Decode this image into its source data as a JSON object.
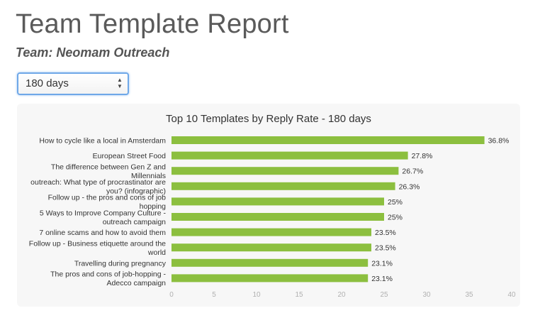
{
  "header": {
    "title": "Team Template Report",
    "team": "Team: Neomam Outreach"
  },
  "range_select": {
    "value": "180 days"
  },
  "colors": {
    "bar": "#8cbf3f",
    "panel": "#f7f7f7",
    "focus_ring": "#6fa8e8"
  },
  "chart_data": {
    "type": "bar",
    "orientation": "horizontal",
    "title": "Top 10 Templates by Reply Rate - 180 days",
    "categories": [
      [
        "How to cycle like a local in Amsterdam"
      ],
      [
        "European Street Food"
      ],
      [
        "The difference between Gen Z and",
        "Millennials"
      ],
      [
        "outreach: What type of procrastinator are",
        "you? (infographic)"
      ],
      [
        "Follow up - the pros and cons of job",
        "hopping"
      ],
      [
        "5 Ways to Improve Company Culture -",
        "outreach campaign"
      ],
      [
        "7 online scams and how to avoid them"
      ],
      [
        "Follow up - Business etiquette around the",
        "world"
      ],
      [
        "Travelling during pregnancy"
      ],
      [
        "The pros and cons of job-hopping -",
        "Adecco campaign"
      ]
    ],
    "values": [
      36.8,
      27.8,
      26.7,
      26.3,
      25,
      25,
      23.5,
      23.5,
      23.1,
      23.1
    ],
    "value_labels": [
      "36.8%",
      "27.8%",
      "26.7%",
      "26.3%",
      "25%",
      "25%",
      "23.5%",
      "23.5%",
      "23.1%",
      "23.1%"
    ],
    "xlim": [
      0,
      40
    ],
    "xticks": [
      0,
      5,
      10,
      15,
      20,
      25,
      30,
      35,
      40
    ],
    "xlabel": "",
    "ylabel": "",
    "grid": false,
    "legend": "none"
  }
}
